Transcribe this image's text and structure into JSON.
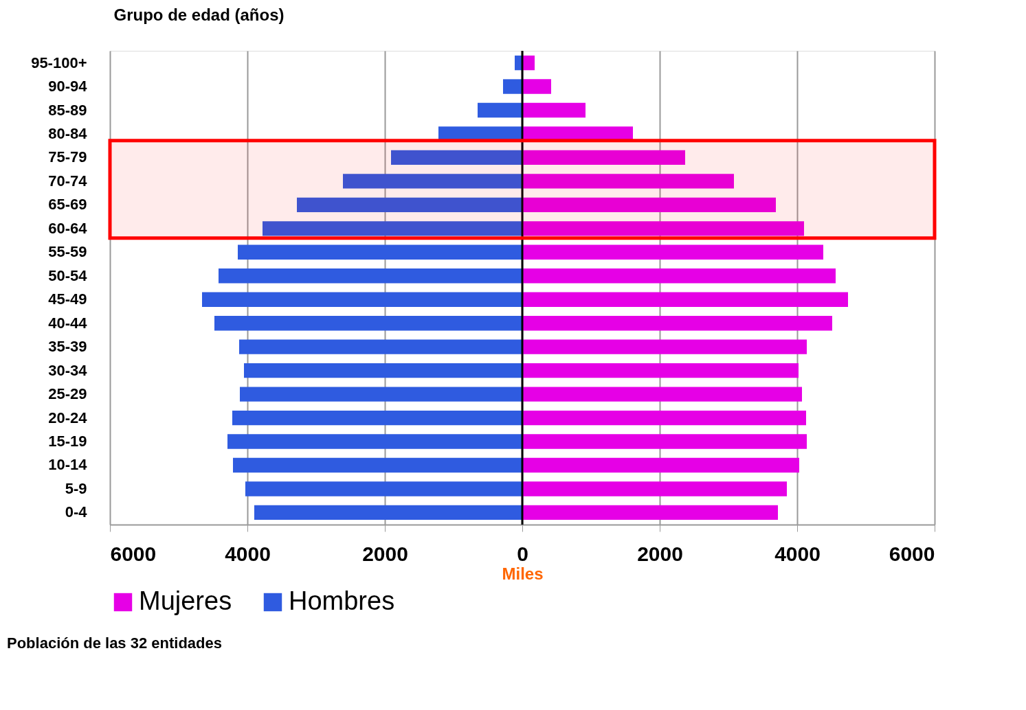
{
  "chart_data": {
    "type": "bar",
    "orientation": "horizontal",
    "ylabel": "Grupo de edad (años)",
    "xlabel": "Miles",
    "categories": [
      "95-100+",
      "90-94",
      "85-89",
      "80-84",
      "75-79",
      "70-74",
      "65-69",
      "60-64",
      "55-59",
      "50-54",
      "45-49",
      "40-44",
      "35-39",
      "30-34",
      "25-29",
      "20-24",
      "15-19",
      "10-14",
      "5-9",
      "0-4"
    ],
    "series": [
      {
        "name": "Mujeres",
        "color": "#e600e6",
        "values": [
          180,
          420,
          920,
          1610,
          2370,
          3080,
          3690,
          4100,
          4380,
          4560,
          4740,
          4510,
          4140,
          4020,
          4070,
          4130,
          4140,
          4030,
          3850,
          3720
        ]
      },
      {
        "name": "Hombres",
        "color": "#2f5be0",
        "values": [
          -110,
          -280,
          -650,
          -1220,
          -1910,
          -2610,
          -3280,
          -3780,
          -4140,
          -4420,
          -4660,
          -4480,
          -4120,
          -4050,
          -4110,
          -4220,
          -4290,
          -4210,
          -4030,
          -3900
        ]
      }
    ],
    "xlim": [
      -6000,
      6000
    ],
    "xticks": [
      {
        "value": -6000,
        "label": "6000"
      },
      {
        "value": -4000,
        "label": "4000"
      },
      {
        "value": -2000,
        "label": "2000"
      },
      0,
      2000,
      4000,
      6000
    ],
    "grid": "x",
    "legend": "bottom",
    "stacked": true,
    "ref_lines": [
      {
        "axis": "x",
        "value": 0,
        "color": "#000000"
      }
    ],
    "bands": [
      {
        "axis": "y",
        "from": "75-79",
        "to": "60-64",
        "color": "#ff0000"
      }
    ],
    "annotations": [
      "Población de las 32 entidades"
    ]
  }
}
